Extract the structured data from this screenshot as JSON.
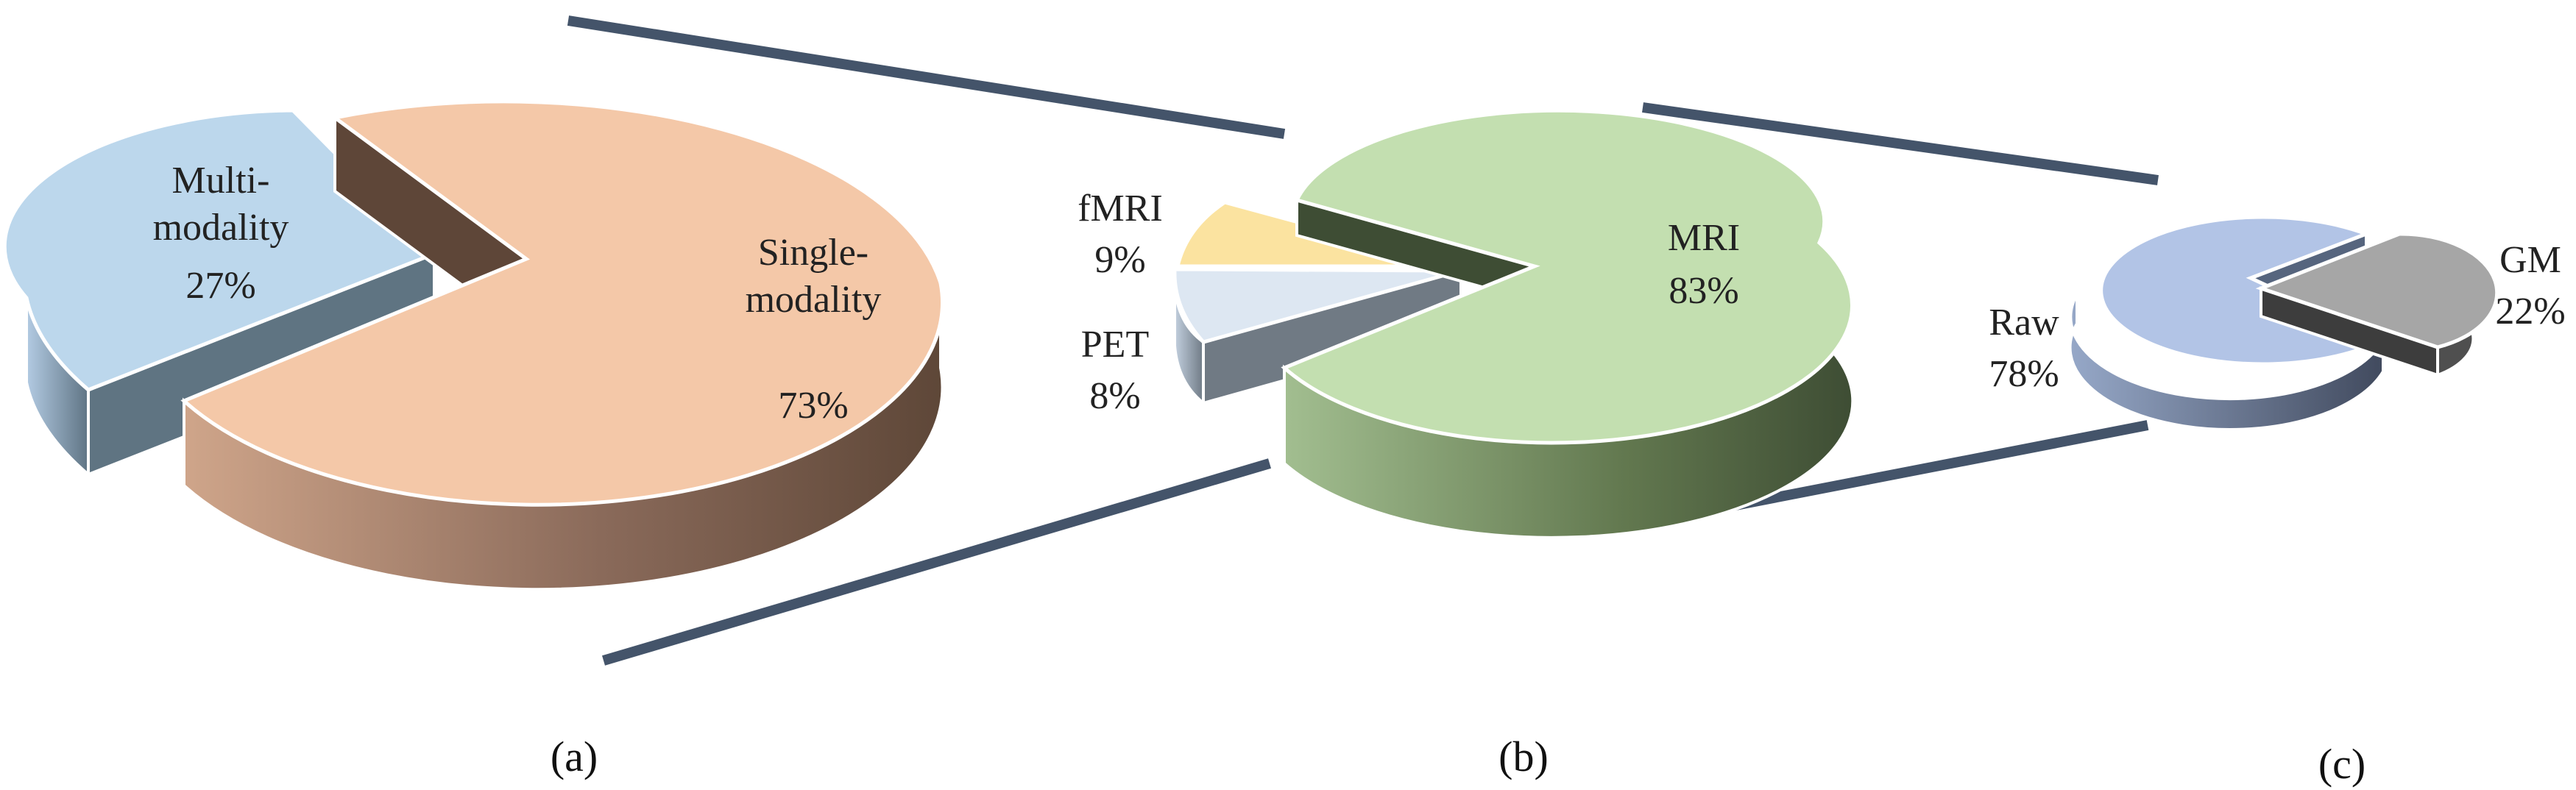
{
  "chart_data": [
    {
      "type": "pie",
      "panel": "(a)",
      "slices": [
        {
          "label": "Single-modality",
          "value": 73,
          "text": "73%",
          "color": "#f4c8a8"
        },
        {
          "label": "Multi-modality",
          "value": 27,
          "text": "27%",
          "color": "#bcd7ec"
        }
      ]
    },
    {
      "type": "pie",
      "panel": "(b)",
      "slices": [
        {
          "label": "MRI",
          "value": 83,
          "text": "83%",
          "color": "#c3dfb0"
        },
        {
          "label": "fMRI",
          "value": 9,
          "text": "9%",
          "color": "#fbe3a0"
        },
        {
          "label": "PET",
          "value": 8,
          "text": "8%",
          "color": "#dde7f2"
        }
      ]
    },
    {
      "type": "pie",
      "panel": "(c)",
      "slices": [
        {
          "label": "Raw",
          "value": 78,
          "text": "78%",
          "color": "#b2c4e6"
        },
        {
          "label": "GM",
          "value": 22,
          "text": "22%",
          "color": "#a6a6a6"
        }
      ]
    }
  ],
  "connector_color": "#44546a"
}
